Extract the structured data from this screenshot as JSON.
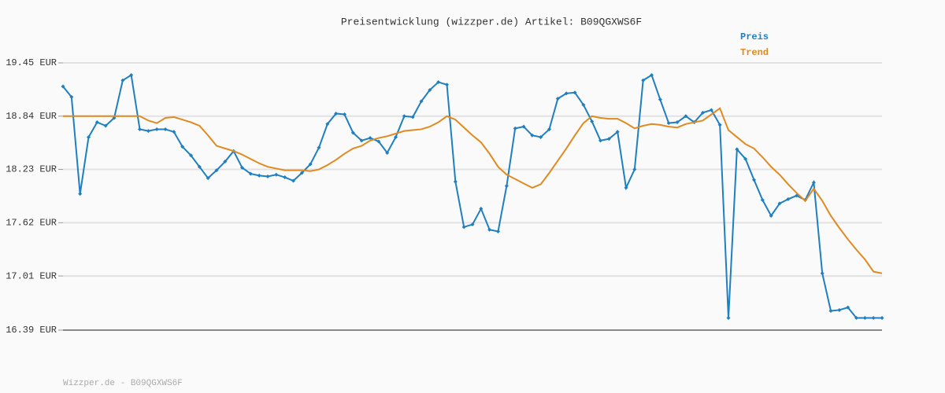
{
  "chart_data": {
    "type": "line",
    "title": "Preisentwicklung (wizzper.de) Artikel: B09QGXWS6F",
    "footer": "Wizzper.de - B09QGXWS6F",
    "ylim": [
      16.39,
      19.45
    ],
    "yticks": [
      {
        "value": 16.39,
        "label": "16.39 EUR"
      },
      {
        "value": 17.01,
        "label": "17.01 EUR"
      },
      {
        "value": 17.62,
        "label": "17.62 EUR"
      },
      {
        "value": 18.23,
        "label": "18.23 EUR"
      },
      {
        "value": 18.84,
        "label": "18.84 EUR"
      },
      {
        "value": 19.45,
        "label": "19.45 EUR"
      }
    ],
    "grid": true,
    "legend": "top-right",
    "series": [
      {
        "name": "Preis",
        "color": "#1f7fc0",
        "markers": true,
        "values": [
          19.18,
          19.06,
          17.95,
          18.6,
          18.77,
          18.73,
          18.82,
          19.25,
          19.31,
          18.69,
          18.67,
          18.69,
          18.69,
          18.66,
          18.49,
          18.39,
          18.26,
          18.13,
          18.22,
          18.32,
          18.44,
          18.25,
          18.18,
          18.16,
          18.15,
          18.17,
          18.14,
          18.1,
          18.19,
          18.29,
          18.48,
          18.75,
          18.87,
          18.86,
          18.65,
          18.56,
          18.59,
          18.55,
          18.42,
          18.6,
          18.84,
          18.83,
          19.01,
          19.14,
          19.23,
          19.2,
          18.09,
          17.57,
          17.6,
          17.78,
          17.54,
          17.52,
          18.04,
          18.7,
          18.72,
          18.62,
          18.6,
          18.69,
          19.04,
          19.1,
          19.11,
          18.97,
          18.78,
          18.56,
          18.58,
          18.66,
          18.02,
          18.23,
          19.25,
          19.31,
          19.03,
          18.76,
          18.77,
          18.84,
          18.77,
          18.88,
          18.91,
          18.74,
          16.53,
          18.46,
          18.35,
          18.11,
          17.88,
          17.7,
          17.84,
          17.89,
          17.93,
          17.88,
          18.08,
          17.04,
          16.61,
          16.62,
          16.65,
          16.53,
          16.53,
          16.53,
          16.53
        ]
      },
      {
        "name": "Trend",
        "color": "#e08a20",
        "markers": false,
        "values": [
          18.84,
          18.84,
          18.84,
          18.84,
          18.84,
          18.84,
          18.84,
          18.84,
          18.84,
          18.84,
          18.79,
          18.76,
          18.82,
          18.83,
          18.8,
          18.77,
          18.73,
          18.62,
          18.5,
          18.47,
          18.44,
          18.4,
          18.35,
          18.3,
          18.26,
          18.24,
          18.22,
          18.22,
          18.22,
          18.21,
          18.23,
          18.28,
          18.34,
          18.41,
          18.47,
          18.5,
          18.56,
          18.59,
          18.61,
          18.64,
          18.67,
          18.68,
          18.69,
          18.72,
          18.77,
          18.84,
          18.8,
          18.71,
          18.62,
          18.54,
          18.41,
          18.26,
          18.17,
          18.12,
          18.07,
          18.02,
          18.06,
          18.19,
          18.33,
          18.47,
          18.62,
          18.76,
          18.84,
          18.82,
          18.81,
          18.81,
          18.76,
          18.7,
          18.73,
          18.75,
          18.74,
          18.72,
          18.71,
          18.75,
          18.77,
          18.79,
          18.86,
          18.93,
          18.68,
          18.6,
          18.52,
          18.47,
          18.37,
          18.26,
          18.17,
          18.06,
          17.96,
          17.87,
          18.01,
          17.87,
          17.7,
          17.56,
          17.43,
          17.31,
          17.2,
          17.06,
          17.04
        ]
      }
    ]
  }
}
